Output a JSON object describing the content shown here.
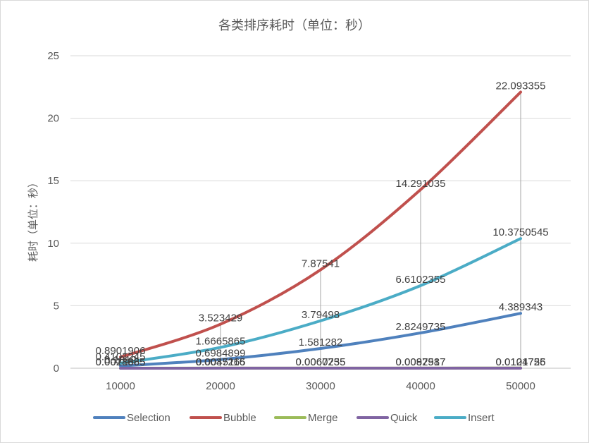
{
  "chart_data": {
    "type": "line",
    "title": "各类排序耗时（单位：秒）",
    "ylabel": "耗时（单位：秒）",
    "xlabel": "",
    "categories": [
      "10000",
      "20000",
      "30000",
      "40000",
      "50000"
    ],
    "ylim": [
      0,
      25
    ],
    "yticks": [
      "0",
      "5",
      "10",
      "15",
      "20",
      "25"
    ],
    "grid": true,
    "legend": "bottom",
    "series": [
      {
        "name": "Selection",
        "color": "#4f81bd",
        "values": [
          0.1812,
          0.6984899,
          1.581282,
          2.8249735,
          4.389343
        ],
        "labels": [
          "0.1812",
          "0.6984899",
          "1.581282",
          "2.8249735",
          "4.389343"
        ]
      },
      {
        "name": "Bubble",
        "color": "#c0504d",
        "values": [
          0.8901906,
          3.523429,
          7.87541,
          14.291035,
          22.093355
        ],
        "labels": [
          "0.8901906",
          "3.523429",
          "7.87541",
          "14.291035",
          "22.093355"
        ]
      },
      {
        "name": "Merge",
        "color": "#9bbb59",
        "values": [
          0.0021665,
          0.0045116,
          0.0067235,
          0.0097987,
          0.0124756
        ],
        "labels": [
          "0.0021665",
          "0.0045116",
          "0.0067235",
          "0.0097987",
          "0.0124756"
        ]
      },
      {
        "name": "Quick",
        "color": "#8064a2",
        "values": [
          0.0018885,
          0.0037265,
          0.0060755,
          0.0082517,
          0.0101725
        ],
        "labels": [
          "0.0018885",
          "0.0037265",
          "0.0060755",
          "0.0082517",
          "0.0101725"
        ]
      },
      {
        "name": "Insert",
        "color": "#4bacc6",
        "values": [
          0.4101245,
          1.6665865,
          3.79498,
          6.6102355,
          10.3750545
        ],
        "labels": [
          "0.4101245",
          "1.6665865",
          "3.79498",
          "6.6102355",
          "10.3750545"
        ]
      }
    ]
  }
}
